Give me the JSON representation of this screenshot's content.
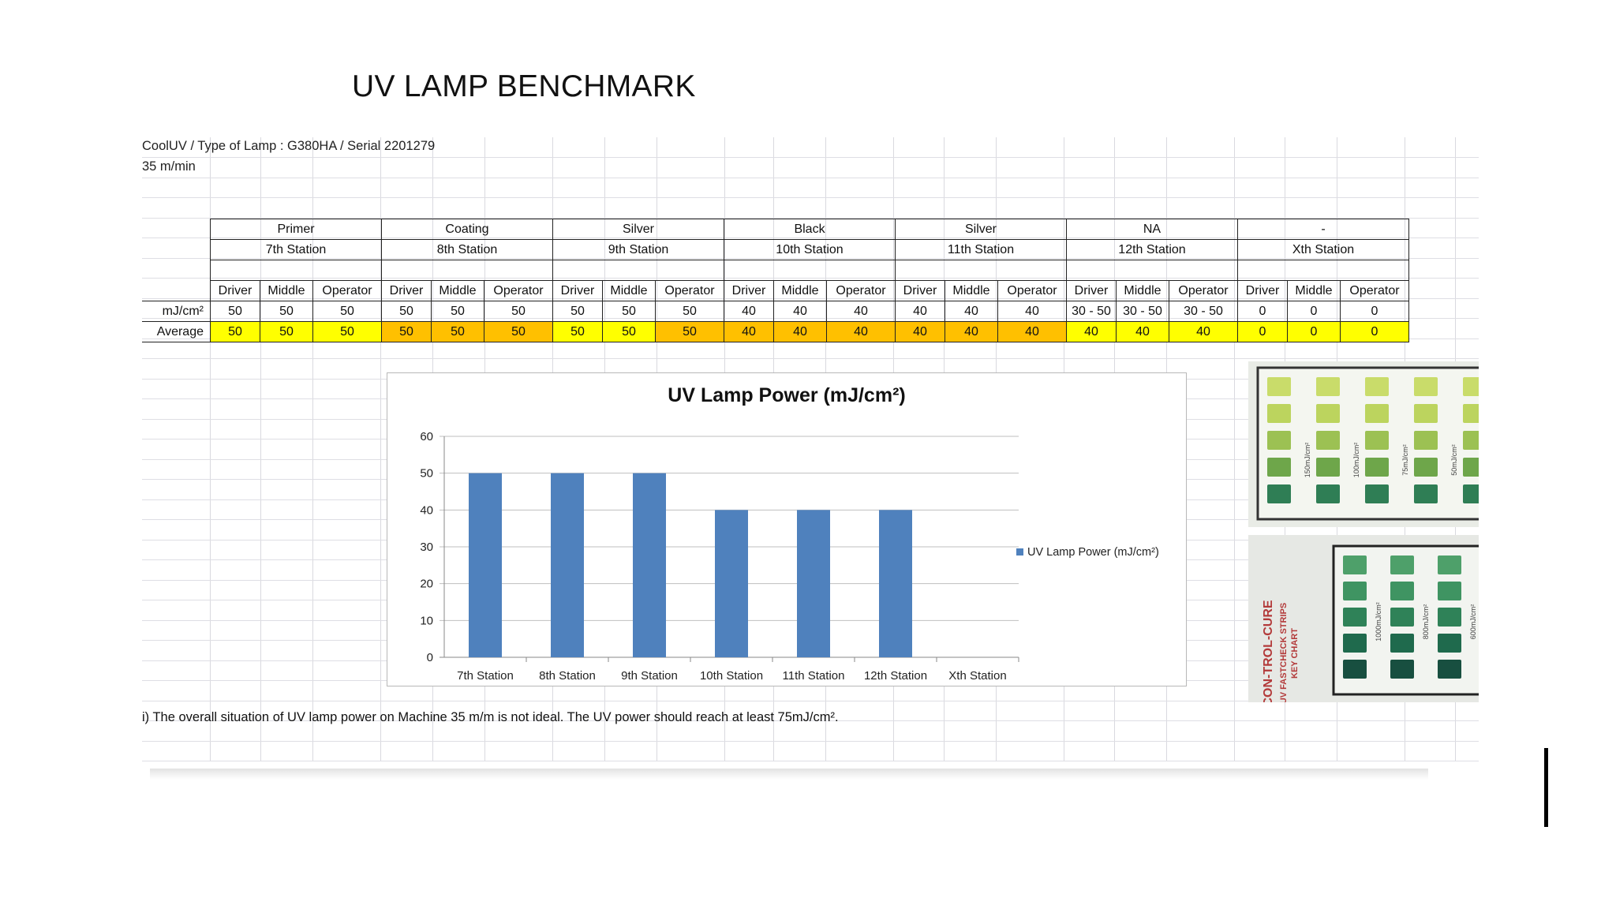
{
  "title": "UV LAMP BENCHMARK",
  "meta": {
    "line1": "CoolUV / Type of Lamp : G380HA / Serial 2201279",
    "line2": "35 m/min"
  },
  "table": {
    "groups": [
      {
        "label": "Primer",
        "station": "7th Station"
      },
      {
        "label": "Coating",
        "station": "8th Station"
      },
      {
        "label": "Silver",
        "station": "9th Station"
      },
      {
        "label": "Black",
        "station": "10th Station"
      },
      {
        "label": "Silver",
        "station": "11th Station"
      },
      {
        "label": "NA",
        "station": "12th Station"
      },
      {
        "label": "-",
        "station": "Xth Station"
      }
    ],
    "positions": [
      "Driver",
      "Middle",
      "Operator"
    ],
    "rows": [
      {
        "label": "mJ/cm²",
        "values": [
          "50",
          "50",
          "50",
          "50",
          "50",
          "50",
          "50",
          "50",
          "50",
          "40",
          "40",
          "40",
          "40",
          "40",
          "40",
          "30 - 50",
          "30 - 50",
          "30 - 50",
          "0",
          "0",
          "0"
        ]
      },
      {
        "label": "Average",
        "values": [
          "50",
          "50",
          "50",
          "50",
          "50",
          "50",
          "50",
          "50",
          "50",
          "40",
          "40",
          "40",
          "40",
          "40",
          "40",
          "40",
          "40",
          "40",
          "0",
          "0",
          "0"
        ]
      }
    ]
  },
  "chart_data": {
    "type": "bar",
    "title": "UV Lamp Power (mJ/cm²)",
    "categories": [
      "7th Station",
      "8th Station",
      "9th Station",
      "10th Station",
      "11th Station",
      "12th Station",
      "Xth Station"
    ],
    "series": [
      {
        "name": "UV Lamp Power (mJ/cm²)",
        "values": [
          50,
          50,
          50,
          40,
          40,
          40,
          0
        ]
      }
    ],
    "yticks": [
      "0",
      "10",
      "20",
      "30",
      "40",
      "50",
      "60"
    ],
    "ylim": [
      0,
      60
    ],
    "grid": true,
    "legend": "right",
    "colors": {
      "bar": "#4f81bd",
      "grid": "#bfbfbf",
      "axis": "#888888"
    }
  },
  "footnote": "i) The overall situation of UV lamp power on Machine 35 m/m is not ideal. The UV power should reach at least 75mJ/cm².",
  "photos": {
    "top_labels": [
      "150mJ/cm²",
      "100mJ/cm²",
      "75mJ/cm²",
      "50mJ/cm²"
    ],
    "bottom_labels": [
      "1000mJ/cm²",
      "800mJ/cm²",
      "600mJ/cm²"
    ],
    "brand": "CON-TROL-CURE",
    "strip_name": "UV FASTCHECK STRIPS",
    "chart_name": "KEY CHART",
    "colors": {
      "red": "#b33a3a",
      "green_light": "#b8d15a",
      "green_dark": "#1e6b4d"
    }
  },
  "colors": {
    "avg_yellow": "#ffff00",
    "avg_orange": "#ffc000",
    "gridline": "#d9d9df"
  }
}
